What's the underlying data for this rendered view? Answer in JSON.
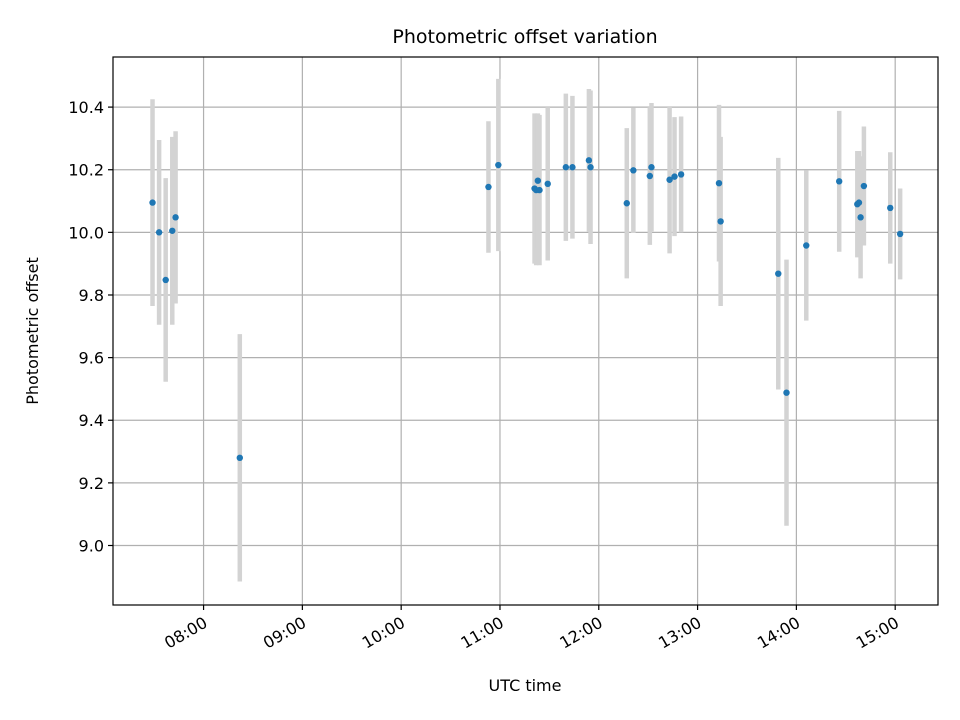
{
  "chart_data": {
    "type": "scatter",
    "title": "Photometric offset variation",
    "xlabel": "UTC time",
    "ylabel": "Photometric offset",
    "x_unit": "time of day (UTC)",
    "xlim": [
      "07:05",
      "15:26"
    ],
    "ylim": [
      8.81,
      10.56
    ],
    "grid": true,
    "error_bar_color": "#d3d3d3",
    "marker_color": "#1f77b4",
    "x_ticks": [
      "08:00",
      "09:00",
      "10:00",
      "11:00",
      "12:00",
      "13:00",
      "14:00",
      "15:00"
    ],
    "y_ticks": [
      "9.0",
      "9.2",
      "9.4",
      "9.6",
      "9.8",
      "10.0",
      "10.2",
      "10.4"
    ],
    "points": [
      {
        "t": "07:29",
        "y": 10.095,
        "err": 0.33
      },
      {
        "t": "07:33",
        "y": 10.0,
        "err": 0.295
      },
      {
        "t": "07:37",
        "y": 9.848,
        "err": 0.325
      },
      {
        "t": "07:41",
        "y": 10.005,
        "err": 0.3
      },
      {
        "t": "07:43",
        "y": 10.048,
        "err": 0.275
      },
      {
        "t": "08:22",
        "y": 9.28,
        "err": 0.395
      },
      {
        "t": "10:53",
        "y": 10.145,
        "err": 0.21
      },
      {
        "t": "10:59",
        "y": 10.215,
        "err": 0.275
      },
      {
        "t": "11:21",
        "y": 10.14,
        "err": 0.24
      },
      {
        "t": "11:22",
        "y": 10.135,
        "err": 0.24
      },
      {
        "t": "11:23",
        "y": 10.165,
        "err": 0.215
      },
      {
        "t": "11:24",
        "y": 10.135,
        "err": 0.24
      },
      {
        "t": "11:29",
        "y": 10.155,
        "err": 0.245
      },
      {
        "t": "11:40",
        "y": 10.208,
        "err": 0.235
      },
      {
        "t": "11:44",
        "y": 10.208,
        "err": 0.228
      },
      {
        "t": "11:54",
        "y": 10.23,
        "err": 0.228
      },
      {
        "t": "11:55",
        "y": 10.208,
        "err": 0.245
      },
      {
        "t": "12:17",
        "y": 10.093,
        "err": 0.24
      },
      {
        "t": "12:21",
        "y": 10.198,
        "err": 0.2
      },
      {
        "t": "12:31",
        "y": 10.18,
        "err": 0.22
      },
      {
        "t": "12:32",
        "y": 10.208,
        "err": 0.205
      },
      {
        "t": "12:43",
        "y": 10.168,
        "err": 0.235
      },
      {
        "t": "12:46",
        "y": 10.178,
        "err": 0.19
      },
      {
        "t": "12:50",
        "y": 10.185,
        "err": 0.185
      },
      {
        "t": "13:13",
        "y": 10.157,
        "err": 0.25
      },
      {
        "t": "13:14",
        "y": 10.035,
        "err": 0.27
      },
      {
        "t": "13:49",
        "y": 9.868,
        "err": 0.37
      },
      {
        "t": "13:54",
        "y": 9.488,
        "err": 0.425
      },
      {
        "t": "14:06",
        "y": 9.958,
        "err": 0.24
      },
      {
        "t": "14:26",
        "y": 10.163,
        "err": 0.225
      },
      {
        "t": "14:37",
        "y": 10.09,
        "err": 0.17
      },
      {
        "t": "14:38",
        "y": 10.095,
        "err": 0.165
      },
      {
        "t": "14:39",
        "y": 10.048,
        "err": 0.195
      },
      {
        "t": "14:41",
        "y": 10.148,
        "err": 0.19
      },
      {
        "t": "14:57",
        "y": 10.078,
        "err": 0.178
      },
      {
        "t": "15:03",
        "y": 9.995,
        "err": 0.145
      }
    ]
  }
}
